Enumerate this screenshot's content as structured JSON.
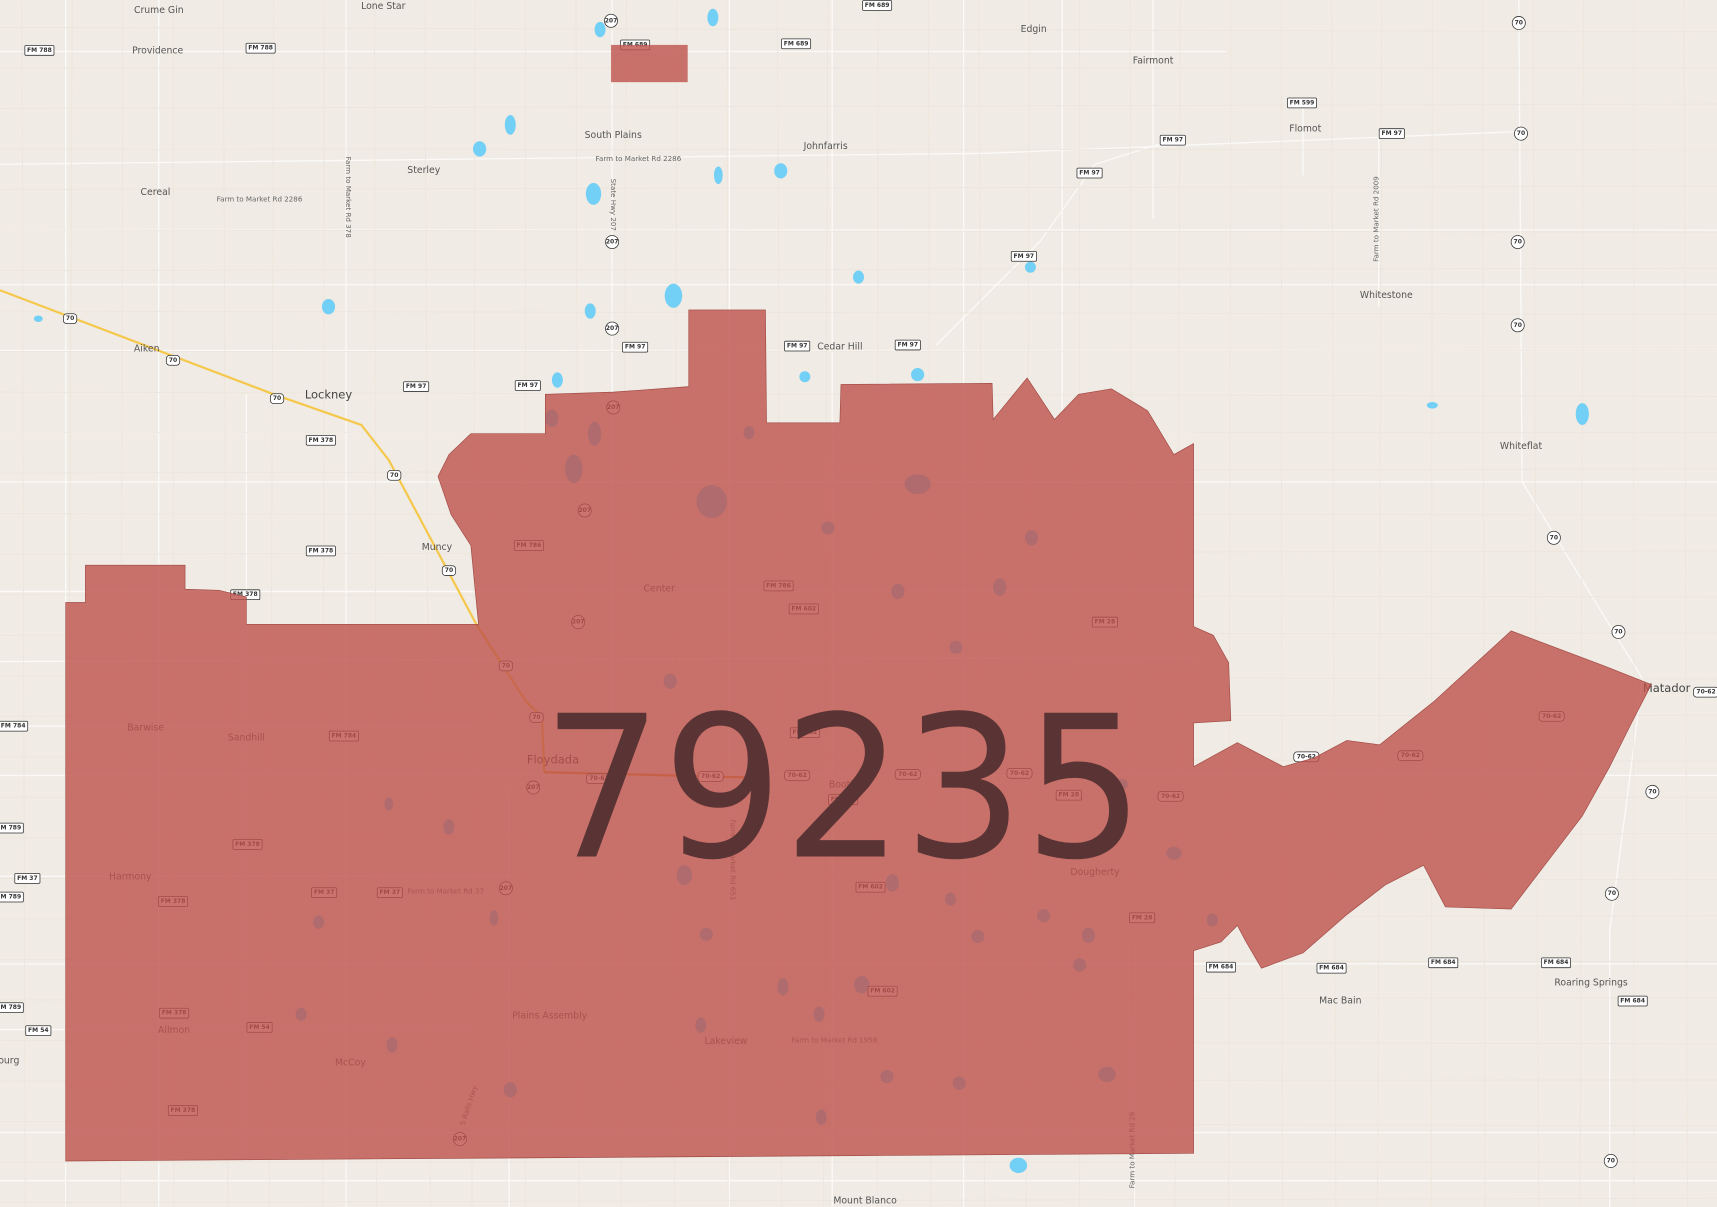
{
  "map": {
    "zip_label": "79235",
    "colors": {
      "land": "#f0ebe4",
      "zip_fill": "#be514b",
      "water": "#72cff5",
      "highway": "#f5c84c",
      "road": "#ffffff",
      "zip_text": "#5a3434"
    },
    "places": [
      "Crume Gin",
      "Lone Star",
      "Providence",
      "Edgin",
      "Fairmont",
      "South Plains",
      "Johnfarris",
      "Flomot",
      "Sterley",
      "Cereal",
      "Whitestone",
      "Aiken",
      "Cedar Hill",
      "Lockney",
      "Whiteflat",
      "Muncy",
      "Center",
      "Barwise",
      "Sandhill",
      "Floydada",
      "Boothe",
      "Matador",
      "Harmony",
      "Dougherty",
      "Mac Bain",
      "Roaring Springs",
      "Plains Assembly",
      "Allmon",
      "Lakeview",
      "McCoy",
      "ourg",
      "Mount Blanco"
    ],
    "road_labels": [
      "Farm to Market Rd 2286",
      "Farm to Market Rd 2286",
      "Farm to Market Rd 378",
      "State Hwy 207",
      "Farm to Market Rd 2009",
      "Farm to Market Rd 37",
      "Farm to Market Rd 651",
      "Farm to Market Rd 1958",
      "S Ralls Hwy",
      "Farm to Market Rd 28"
    ],
    "shields": [
      {
        "label": "FM 788",
        "kind": "fm"
      },
      {
        "label": "FM 788",
        "kind": "fm"
      },
      {
        "label": "207",
        "kind": "state"
      },
      {
        "label": "FM 689",
        "kind": "fm"
      },
      {
        "label": "FM 689",
        "kind": "fm"
      },
      {
        "label": "FM 689",
        "kind": "fm"
      },
      {
        "label": "FM 599",
        "kind": "fm"
      },
      {
        "label": "FM 97",
        "kind": "fm"
      },
      {
        "label": "FM 97",
        "kind": "fm"
      },
      {
        "label": "70",
        "kind": "state"
      },
      {
        "label": "70",
        "kind": "state"
      },
      {
        "label": "FM 97",
        "kind": "fm"
      },
      {
        "label": "207",
        "kind": "state"
      },
      {
        "label": "FM 97",
        "kind": "fm"
      },
      {
        "label": "70",
        "kind": "state"
      },
      {
        "label": "70",
        "kind": "state"
      },
      {
        "label": "70",
        "kind": "us"
      },
      {
        "label": "70",
        "kind": "us"
      },
      {
        "label": "207",
        "kind": "state"
      },
      {
        "label": "FM 97",
        "kind": "fm"
      },
      {
        "label": "FM 97",
        "kind": "fm"
      },
      {
        "label": "FM 97",
        "kind": "fm"
      },
      {
        "label": "FM 97",
        "kind": "fm"
      },
      {
        "label": "FM 97",
        "kind": "fm"
      },
      {
        "label": "70",
        "kind": "us"
      },
      {
        "label": "FM 378",
        "kind": "fm"
      },
      {
        "label": "207",
        "kind": "state"
      },
      {
        "label": "70",
        "kind": "us"
      },
      {
        "label": "207",
        "kind": "state"
      },
      {
        "label": "FM 786",
        "kind": "fm"
      },
      {
        "label": "FM 378",
        "kind": "fm"
      },
      {
        "label": "70",
        "kind": "us"
      },
      {
        "label": "70",
        "kind": "state"
      },
      {
        "label": "FM 378",
        "kind": "fm"
      },
      {
        "label": "FM 786",
        "kind": "fm"
      },
      {
        "label": "FM 602",
        "kind": "fm"
      },
      {
        "label": "207",
        "kind": "state"
      },
      {
        "label": "FM 28",
        "kind": "fm"
      },
      {
        "label": "70",
        "kind": "state"
      },
      {
        "label": "70",
        "kind": "us"
      },
      {
        "label": "FM 784",
        "kind": "fm"
      },
      {
        "label": "FM 784",
        "kind": "fm"
      },
      {
        "label": "FM 602",
        "kind": "fm"
      },
      {
        "label": "70",
        "kind": "us"
      },
      {
        "label": "70-62",
        "kind": "us"
      },
      {
        "label": "70-62",
        "kind": "us"
      },
      {
        "label": "70-62",
        "kind": "us"
      },
      {
        "label": "70-62",
        "kind": "us"
      },
      {
        "label": "70-62",
        "kind": "us"
      },
      {
        "label": "70-62",
        "kind": "us"
      },
      {
        "label": "70-62",
        "kind": "us"
      },
      {
        "label": "70-62",
        "kind": "us"
      },
      {
        "label": "70-62",
        "kind": "us"
      },
      {
        "label": "FM 28",
        "kind": "fm"
      },
      {
        "label": "FM 602",
        "kind": "fm"
      },
      {
        "label": "207",
        "kind": "state"
      },
      {
        "label": "70",
        "kind": "state"
      },
      {
        "label": "FM 789",
        "kind": "fm"
      },
      {
        "label": "FM 378",
        "kind": "fm"
      },
      {
        "label": "FM 37",
        "kind": "fm"
      },
      {
        "label": "FM 789",
        "kind": "fm"
      },
      {
        "label": "FM 378",
        "kind": "fm"
      },
      {
        "label": "FM 37",
        "kind": "fm"
      },
      {
        "label": "FM 37",
        "kind": "fm"
      },
      {
        "label": "207",
        "kind": "state"
      },
      {
        "label": "FM 602",
        "kind": "fm"
      },
      {
        "label": "70",
        "kind": "state"
      },
      {
        "label": "FM 28",
        "kind": "fm"
      },
      {
        "label": "FM 684",
        "kind": "fm"
      },
      {
        "label": "FM 684",
        "kind": "fm"
      },
      {
        "label": "FM 684",
        "kind": "fm"
      },
      {
        "label": "FM 684",
        "kind": "fm"
      },
      {
        "label": "FM 684",
        "kind": "fm"
      },
      {
        "label": "FM 602",
        "kind": "fm"
      },
      {
        "label": "FM 789",
        "kind": "fm"
      },
      {
        "label": "FM 378",
        "kind": "fm"
      },
      {
        "label": "FM 54",
        "kind": "fm"
      },
      {
        "label": "FM 54",
        "kind": "fm"
      },
      {
        "label": "FM 378",
        "kind": "fm"
      },
      {
        "label": "207",
        "kind": "state"
      },
      {
        "label": "70",
        "kind": "state"
      },
      {
        "label": "70-62",
        "kind": "us"
      }
    ]
  }
}
